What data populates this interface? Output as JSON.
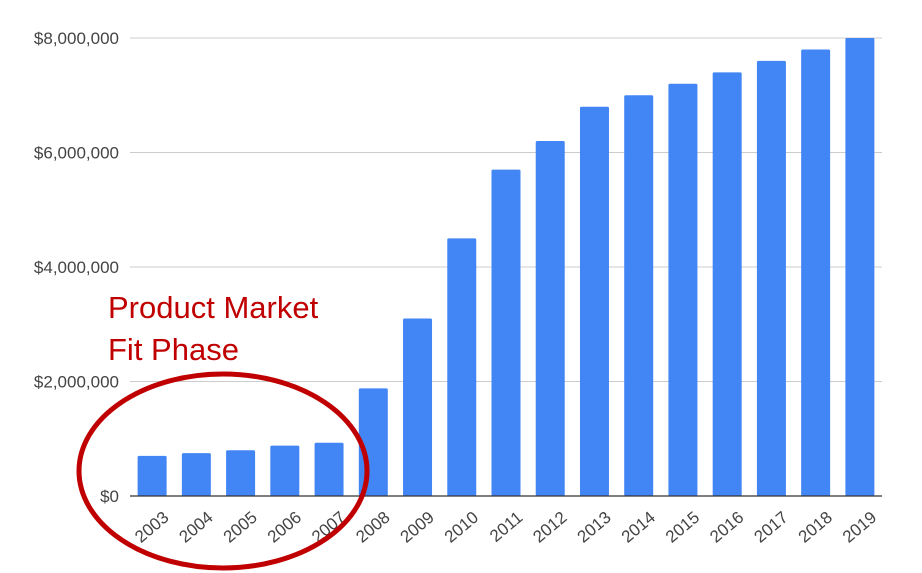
{
  "chart_data": {
    "type": "bar",
    "title": "",
    "xlabel": "",
    "ylabel": "",
    "categories": [
      "2003",
      "2004",
      "2005",
      "2006",
      "2007",
      "2008",
      "2009",
      "2010",
      "2011",
      "2012",
      "2013",
      "2014",
      "2015",
      "2016",
      "2017",
      "2018",
      "2019"
    ],
    "values": [
      700000,
      750000,
      800000,
      880000,
      930000,
      1880000,
      3100000,
      4500000,
      5700000,
      6200000,
      6800000,
      7000000,
      7200000,
      7400000,
      7600000,
      7800000,
      8000000
    ],
    "ylim": [
      0,
      8000000
    ],
    "yticks": [
      0,
      2000000,
      4000000,
      6000000,
      8000000
    ],
    "ytick_labels": [
      "$0",
      "$2,000,000",
      "$4,000,000",
      "$6,000,000",
      "$8,000,000"
    ],
    "grid": true,
    "bar_color": "#4285f4",
    "annotation": {
      "lines": [
        "Product Market",
        "Fit Phase"
      ],
      "color": "#c00000",
      "circled_categories": [
        "2003",
        "2004",
        "2005",
        "2006",
        "2007"
      ]
    }
  }
}
